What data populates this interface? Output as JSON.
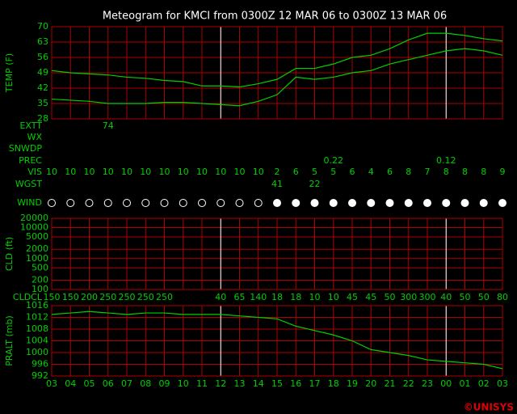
{
  "chart_data": [
    {
      "type": "line",
      "title": "Meteogram for KMCI from 0300Z 12 MAR 06 to 0300Z 13 MAR 06",
      "y_label": "TEMP (F)",
      "ylim": [
        28,
        70
      ],
      "yticks": [
        70,
        63,
        56,
        49,
        42,
        35,
        28
      ],
      "grid": true,
      "series": [
        {
          "color": "#00d000",
          "values": [
            50,
            49,
            48.5,
            48,
            47,
            46.5,
            45.5,
            45,
            43,
            43,
            42.5,
            44,
            46,
            51,
            51,
            53,
            56,
            57,
            60,
            64,
            67,
            67,
            66,
            64.5,
            63.5
          ]
        },
        {
          "color": "#00d000",
          "values": [
            37,
            36.5,
            36,
            35,
            35,
            35,
            35.5,
            35.5,
            35,
            34.5,
            34,
            36,
            39,
            47,
            46,
            47,
            49,
            50,
            53,
            55,
            57,
            59,
            60,
            59,
            57
          ]
        }
      ]
    },
    {
      "type": "log",
      "y_label": "CLD (ft)",
      "ylim": [
        100,
        20000
      ],
      "yticks": [
        20000,
        10000,
        5000,
        2000,
        1000,
        500,
        200,
        100
      ],
      "grid": true
    },
    {
      "type": "line",
      "y_label": "PRALT (mb)",
      "ylim": [
        992,
        1016
      ],
      "yticks": [
        1016,
        1012,
        1008,
        1004,
        1000,
        996,
        992
      ],
      "grid": true,
      "categories": [
        "03",
        "04",
        "05",
        "06",
        "07",
        "08",
        "09",
        "10",
        "11",
        "12",
        "13",
        "14",
        "15",
        "16",
        "17",
        "18",
        "19",
        "20",
        "21",
        "22",
        "23",
        "00",
        "01",
        "02",
        "03"
      ],
      "series": [
        {
          "color": "#00d000",
          "values": [
            1013,
            1013.5,
            1014,
            1013.5,
            1013,
            1013.5,
            1013.5,
            1013,
            1013,
            1013,
            1012.5,
            1012,
            1011.5,
            1009,
            1007.5,
            1006,
            1004,
            1001,
            1000,
            999,
            997.5,
            997,
            996.5,
            996,
            994.5
          ]
        }
      ]
    }
  ],
  "rows": [
    {
      "label": "EXTT",
      "y": 156,
      "values": [
        null,
        null,
        null,
        74,
        null,
        null,
        null,
        null,
        null,
        null,
        null,
        null,
        null,
        null,
        null,
        null,
        null,
        null,
        null,
        null,
        null,
        null,
        null,
        null,
        null
      ]
    },
    {
      "label": "WX",
      "y": 170,
      "values": []
    },
    {
      "label": "SNWDP",
      "y": 184,
      "values": []
    },
    {
      "label": "PREC",
      "y": 199,
      "values": [
        null,
        null,
        null,
        null,
        null,
        null,
        null,
        null,
        null,
        null,
        null,
        null,
        null,
        null,
        null,
        0.22,
        null,
        null,
        null,
        null,
        null,
        0.12,
        null,
        null,
        null
      ]
    },
    {
      "label": "VIS",
      "y": 213,
      "values": [
        10,
        10,
        10,
        10,
        10,
        10,
        10,
        10,
        10,
        10,
        10,
        10,
        2,
        6,
        5,
        5,
        6,
        4,
        6,
        8,
        7,
        8,
        8,
        8,
        9
      ]
    },
    {
      "label": "WGST",
      "y": 228,
      "values": [
        null,
        null,
        null,
        null,
        null,
        null,
        null,
        null,
        null,
        null,
        null,
        null,
        41,
        null,
        22,
        null,
        null,
        null,
        null,
        null,
        null,
        null,
        null,
        null,
        null
      ]
    },
    {
      "label": "WIND",
      "y": 251,
      "values": []
    },
    {
      "label": "CLDCL",
      "y": 368,
      "values": [
        150,
        150,
        200,
        250,
        250,
        250,
        250,
        null,
        null,
        40,
        65,
        140,
        18,
        18,
        10,
        10,
        45,
        45,
        50,
        300,
        300,
        40,
        50,
        50,
        80
      ]
    }
  ],
  "footer": "©UNISYS"
}
